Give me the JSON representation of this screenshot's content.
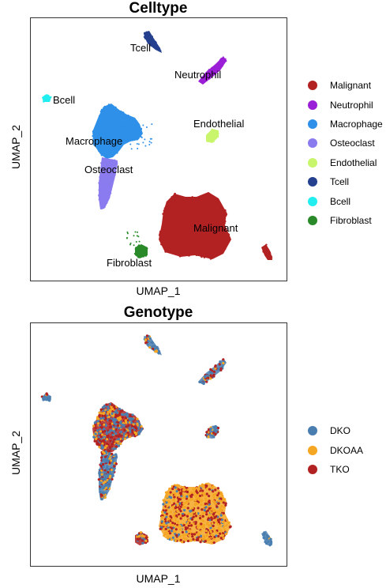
{
  "chart_data": [
    {
      "type": "scatter",
      "title": "Celltype",
      "xlabel": "UMAP_1",
      "ylabel": "UMAP_2",
      "legend_position": "right",
      "grid": false,
      "series": [
        {
          "name": "Malignant",
          "color": "#B22222",
          "cluster_label": "Malignant"
        },
        {
          "name": "Neutrophil",
          "color": "#9B1FD6",
          "cluster_label": "Neutrophil"
        },
        {
          "name": "Macrophage",
          "color": "#2E90E8",
          "cluster_label": "Macrophage"
        },
        {
          "name": "Osteoclast",
          "color": "#8A7BEF",
          "cluster_label": "Osteoclast"
        },
        {
          "name": "Endothelial",
          "color": "#C8F56B",
          "cluster_label": "Endothelial"
        },
        {
          "name": "Tcell",
          "color": "#24408E",
          "cluster_label": "Tcell"
        },
        {
          "name": "Bcell",
          "color": "#22EEF0",
          "cluster_label": "Bcell"
        },
        {
          "name": "Fibroblast",
          "color": "#2A8A2A",
          "cluster_label": "Fibroblast"
        }
      ]
    },
    {
      "type": "scatter",
      "title": "Genotype",
      "xlabel": "UMAP_1",
      "ylabel": "UMAP_2",
      "legend_position": "right",
      "grid": false,
      "series": [
        {
          "name": "DKO",
          "color": "#4A7EB0"
        },
        {
          "name": "DKOAA",
          "color": "#F5A623"
        },
        {
          "name": "TKO",
          "color": "#B22222"
        }
      ]
    }
  ]
}
